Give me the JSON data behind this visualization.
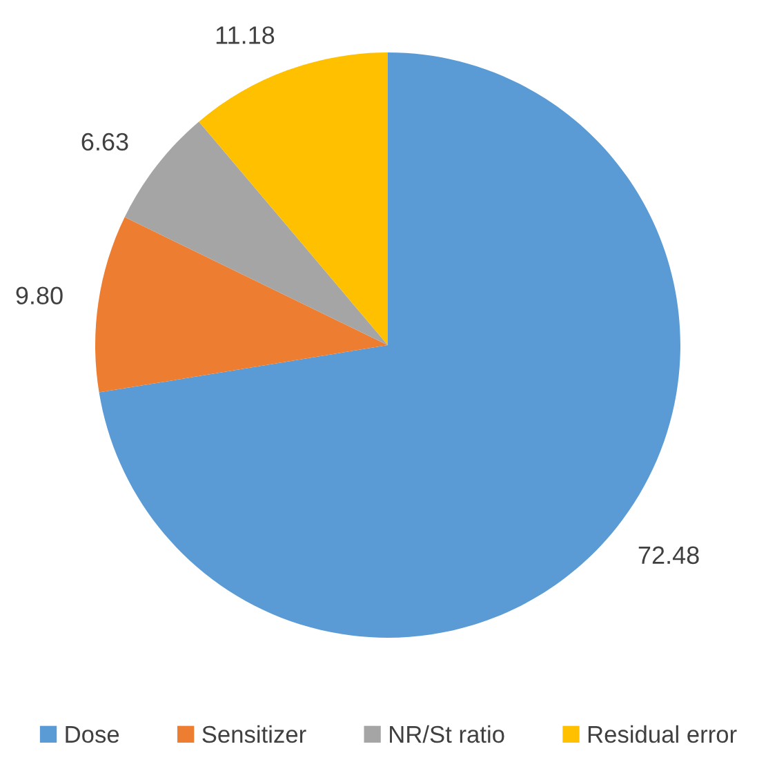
{
  "chart_data": {
    "type": "pie",
    "categories": [
      "Dose",
      "Sensitizer",
      "NR/St ratio",
      "Residual error"
    ],
    "values": [
      72.48,
      9.8,
      6.63,
      11.18
    ],
    "value_labels": [
      "72.48",
      "9.80",
      "6.63",
      "11.18"
    ],
    "colors": [
      "#5b9bd5",
      "#ed7d31",
      "#a5a5a5",
      "#ffc000"
    ],
    "legend": "bottom"
  }
}
